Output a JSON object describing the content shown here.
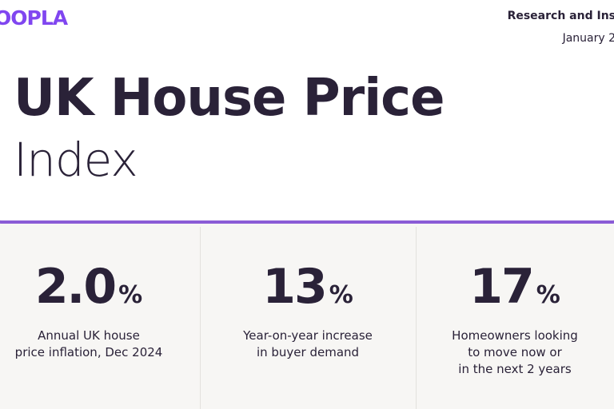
{
  "header": {
    "logo": "OOPLA",
    "section": "Research and Ins",
    "date": "January 2"
  },
  "title": {
    "line1": "UK House Price",
    "line2": "Index"
  },
  "stats": [
    {
      "value": "2.0",
      "unit": "%",
      "label": [
        "Annual UK house",
        "price inflation, Dec 2024"
      ]
    },
    {
      "value": "13",
      "unit": "%",
      "label": [
        "Year-on-year increase",
        "in buyer demand"
      ]
    },
    {
      "value": "17",
      "unit": "%",
      "label": [
        "Homeowners looking",
        "to move now or",
        "in the next 2 years"
      ]
    }
  ]
}
